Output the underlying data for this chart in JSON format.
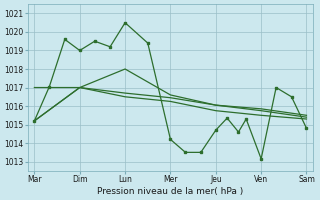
{
  "title": "",
  "xlabel": "Pression niveau de la mer( hPa )",
  "ylabel": "",
  "background_color": "#cce8ee",
  "grid_color": "#9bbfc8",
  "line_color": "#2d6e2d",
  "xlim": [
    -0.15,
    6.15
  ],
  "ylim": [
    1012.5,
    1021.5
  ],
  "yticks": [
    1013,
    1014,
    1015,
    1016,
    1017,
    1018,
    1019,
    1020,
    1021
  ],
  "xtick_labels": [
    "Mar",
    "Dim",
    "Lun",
    "Mer",
    "Jeu",
    "Ven",
    "Sam"
  ],
  "xtick_positions": [
    0,
    1,
    2,
    3,
    4,
    5,
    6
  ],
  "line1_x": [
    0.0,
    0.33,
    0.67,
    1.0,
    1.33,
    1.67,
    2.0,
    2.5,
    3.0,
    3.33,
    3.67,
    4.0,
    4.33,
    4.5,
    4.67,
    5.0,
    5.33,
    5.67,
    6.0
  ],
  "line1_y": [
    1015.2,
    1017.0,
    1019.6,
    1019.0,
    1019.5,
    1019.2,
    1020.5,
    1019.5,
    1014.2,
    1013.5,
    1013.5,
    1014.7,
    1015.4,
    1014.6,
    1015.3,
    1013.15,
    1017.0,
    1016.5,
    1014.8
  ],
  "line2_x": [
    0.0,
    1.0,
    2.0,
    3.0,
    4.0,
    5.0,
    6.0
  ],
  "line2_y": [
    1017.0,
    1017.0,
    1018.0,
    1016.6,
    1016.1,
    1015.9,
    1015.5
  ],
  "line3_x": [
    0.0,
    1.0,
    2.0,
    3.0,
    4.0,
    5.0,
    6.0
  ],
  "line3_y": [
    1015.2,
    1017.0,
    1016.7,
    1016.45,
    1016.1,
    1015.85,
    1015.5
  ],
  "line4_x": [
    0.0,
    1.0,
    2.0,
    3.0,
    4.0,
    5.0,
    6.0
  ],
  "line4_y": [
    1015.2,
    1017.0,
    1016.5,
    1016.3,
    1015.8,
    1015.7,
    1015.4
  ]
}
